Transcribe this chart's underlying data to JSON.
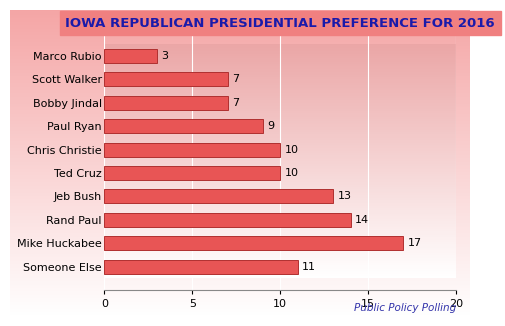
{
  "title": "IOWA REPUBLICAN PRESIDENTIAL PREFERENCE FOR 2016",
  "categories": [
    "Someone Else",
    "Mike Huckabee",
    "Rand Paul",
    "Jeb Bush",
    "Ted Cruz",
    "Chris Christie",
    "Paul Ryan",
    "Bobby Jindal",
    "Scott Walker",
    "Marco Rubio"
  ],
  "values": [
    11,
    17,
    14,
    13,
    10,
    10,
    9,
    7,
    7,
    3
  ],
  "bar_color": "#e85555",
  "bar_edge_color": "#b03030",
  "title_color": "#1a1aaa",
  "label_color": "#000000",
  "value_color": "#000000",
  "watermark_text": "Public Policy Polling",
  "watermark_color": "#3333aa",
  "xlim": [
    0,
    20
  ],
  "xticks": [
    0,
    5,
    10,
    15,
    20
  ],
  "title_fontsize": 9.5,
  "label_fontsize": 8,
  "value_fontsize": 8,
  "watermark_fontsize": 7.5,
  "title_bg_color": "#f08080",
  "bar_height": 0.6
}
